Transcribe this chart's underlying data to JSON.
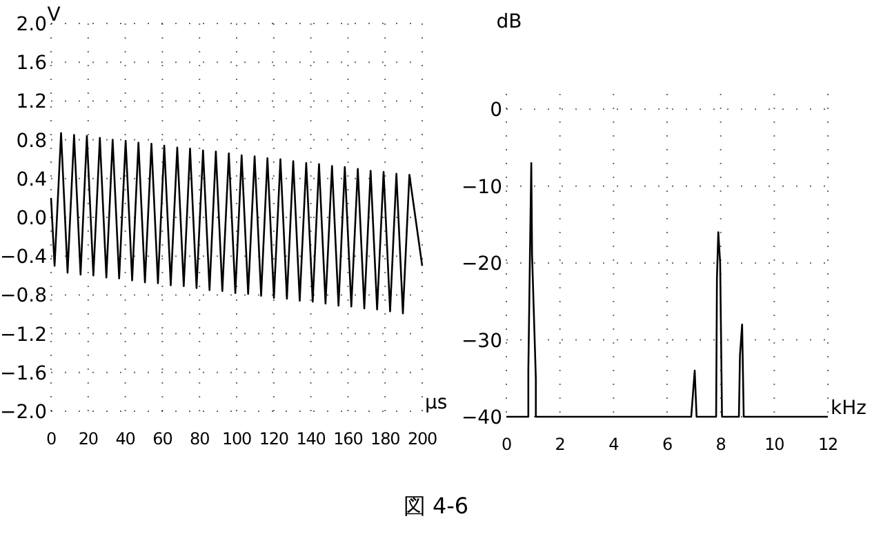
{
  "chart_data": [
    {
      "type": "line",
      "xlabel": "μs",
      "ylabel": "V",
      "xlim": [
        0,
        200
      ],
      "ylim": [
        -2,
        2
      ],
      "xticks": [
        0,
        20,
        40,
        60,
        80,
        100,
        120,
        140,
        160,
        180,
        200
      ],
      "yticks": [
        {
          "value": 2,
          "label": "2.0"
        },
        {
          "value": 1.6,
          "label": "1.6"
        },
        {
          "value": 1.2,
          "label": "1.2"
        },
        {
          "value": 0.8,
          "label": "0.8"
        },
        {
          "value": 0.4,
          "label": "0.4"
        },
        {
          "value": 0,
          "label": "0.0"
        },
        {
          "value": -0.4,
          "label": "−0.4"
        },
        {
          "value": -0.8,
          "label": "−0.8"
        },
        {
          "value": -1.2,
          "label": "−1.2"
        },
        {
          "value": -1.6,
          "label": "−1.6"
        },
        {
          "value": -2,
          "label": "−2.0"
        }
      ],
      "grid": true,
      "line_style": "solid",
      "marker": "none",
      "annotations": [
        "図 4-6"
      ],
      "series": [
        {
          "color": "#000000",
          "x": [
            0,
            1.9,
            5.4,
            8.9,
            12.4,
            15.9,
            19.3,
            22.8,
            26.3,
            29.8,
            33.2,
            36.7,
            40.2,
            43.7,
            47.1,
            50.6,
            54.1,
            57.6,
            61.0,
            64.5,
            68.0,
            71.5,
            74.9,
            78.4,
            81.9,
            85.4,
            88.8,
            92.3,
            95.8,
            99.3,
            102.7,
            106.2,
            109.7,
            113.2,
            116.6,
            120.1,
            123.6,
            127.1,
            130.5,
            134.0,
            137.5,
            141.0,
            144.4,
            147.9,
            151.4,
            154.9,
            158.3,
            161.8,
            165.3,
            168.8,
            172.2,
            175.7,
            179.2,
            182.7,
            186.1,
            189.6,
            193.1,
            200
          ],
          "values": [
            0.2,
            -0.5,
            0.87,
            -0.57,
            0.85,
            -0.59,
            0.84,
            -0.6,
            0.82,
            -0.62,
            0.8,
            -0.63,
            0.79,
            -0.65,
            0.77,
            -0.67,
            0.76,
            -0.68,
            0.74,
            -0.7,
            0.72,
            -0.71,
            0.71,
            -0.73,
            0.69,
            -0.75,
            0.68,
            -0.76,
            0.66,
            -0.78,
            0.64,
            -0.79,
            0.63,
            -0.81,
            0.61,
            -0.83,
            0.6,
            -0.84,
            0.58,
            -0.86,
            0.56,
            -0.87,
            0.55,
            -0.89,
            0.53,
            -0.91,
            0.52,
            -0.92,
            0.5,
            -0.94,
            0.48,
            -0.95,
            0.47,
            -0.97,
            0.45,
            -0.99,
            0.44,
            -0.5
          ]
        }
      ]
    },
    {
      "type": "line",
      "xlabel": "kHz",
      "ylabel": "dB",
      "xlim": [
        0,
        12
      ],
      "ylim": [
        -40,
        2
      ],
      "xticks": [
        0,
        2,
        4,
        6,
        8,
        10,
        12
      ],
      "yticks": [
        0,
        {
          "value": -10,
          "label": "−10"
        },
        {
          "value": -20,
          "label": "−20"
        },
        {
          "value": -30,
          "label": "−30"
        },
        {
          "value": -40,
          "label": "−40"
        }
      ],
      "grid": true,
      "line_style": "solid",
      "marker": "none",
      "series": [
        {
          "color": "#000000",
          "x": [
            0,
            0.82,
            0.82,
            0.88,
            0.93,
            0.96,
            1.1,
            1.1,
            6.9,
            7.03,
            7.1,
            7.83,
            7.86,
            7.91,
            7.98,
            8.05,
            8.68,
            8.72,
            8.8,
            8.86,
            12
          ],
          "values": [
            -40,
            -40,
            -34,
            -19,
            -7,
            -19,
            -35,
            -40,
            -40,
            -34,
            -40,
            -40,
            -22,
            -16,
            -20,
            -40,
            -40,
            -32,
            -28,
            -40,
            -40
          ]
        }
      ]
    }
  ]
}
